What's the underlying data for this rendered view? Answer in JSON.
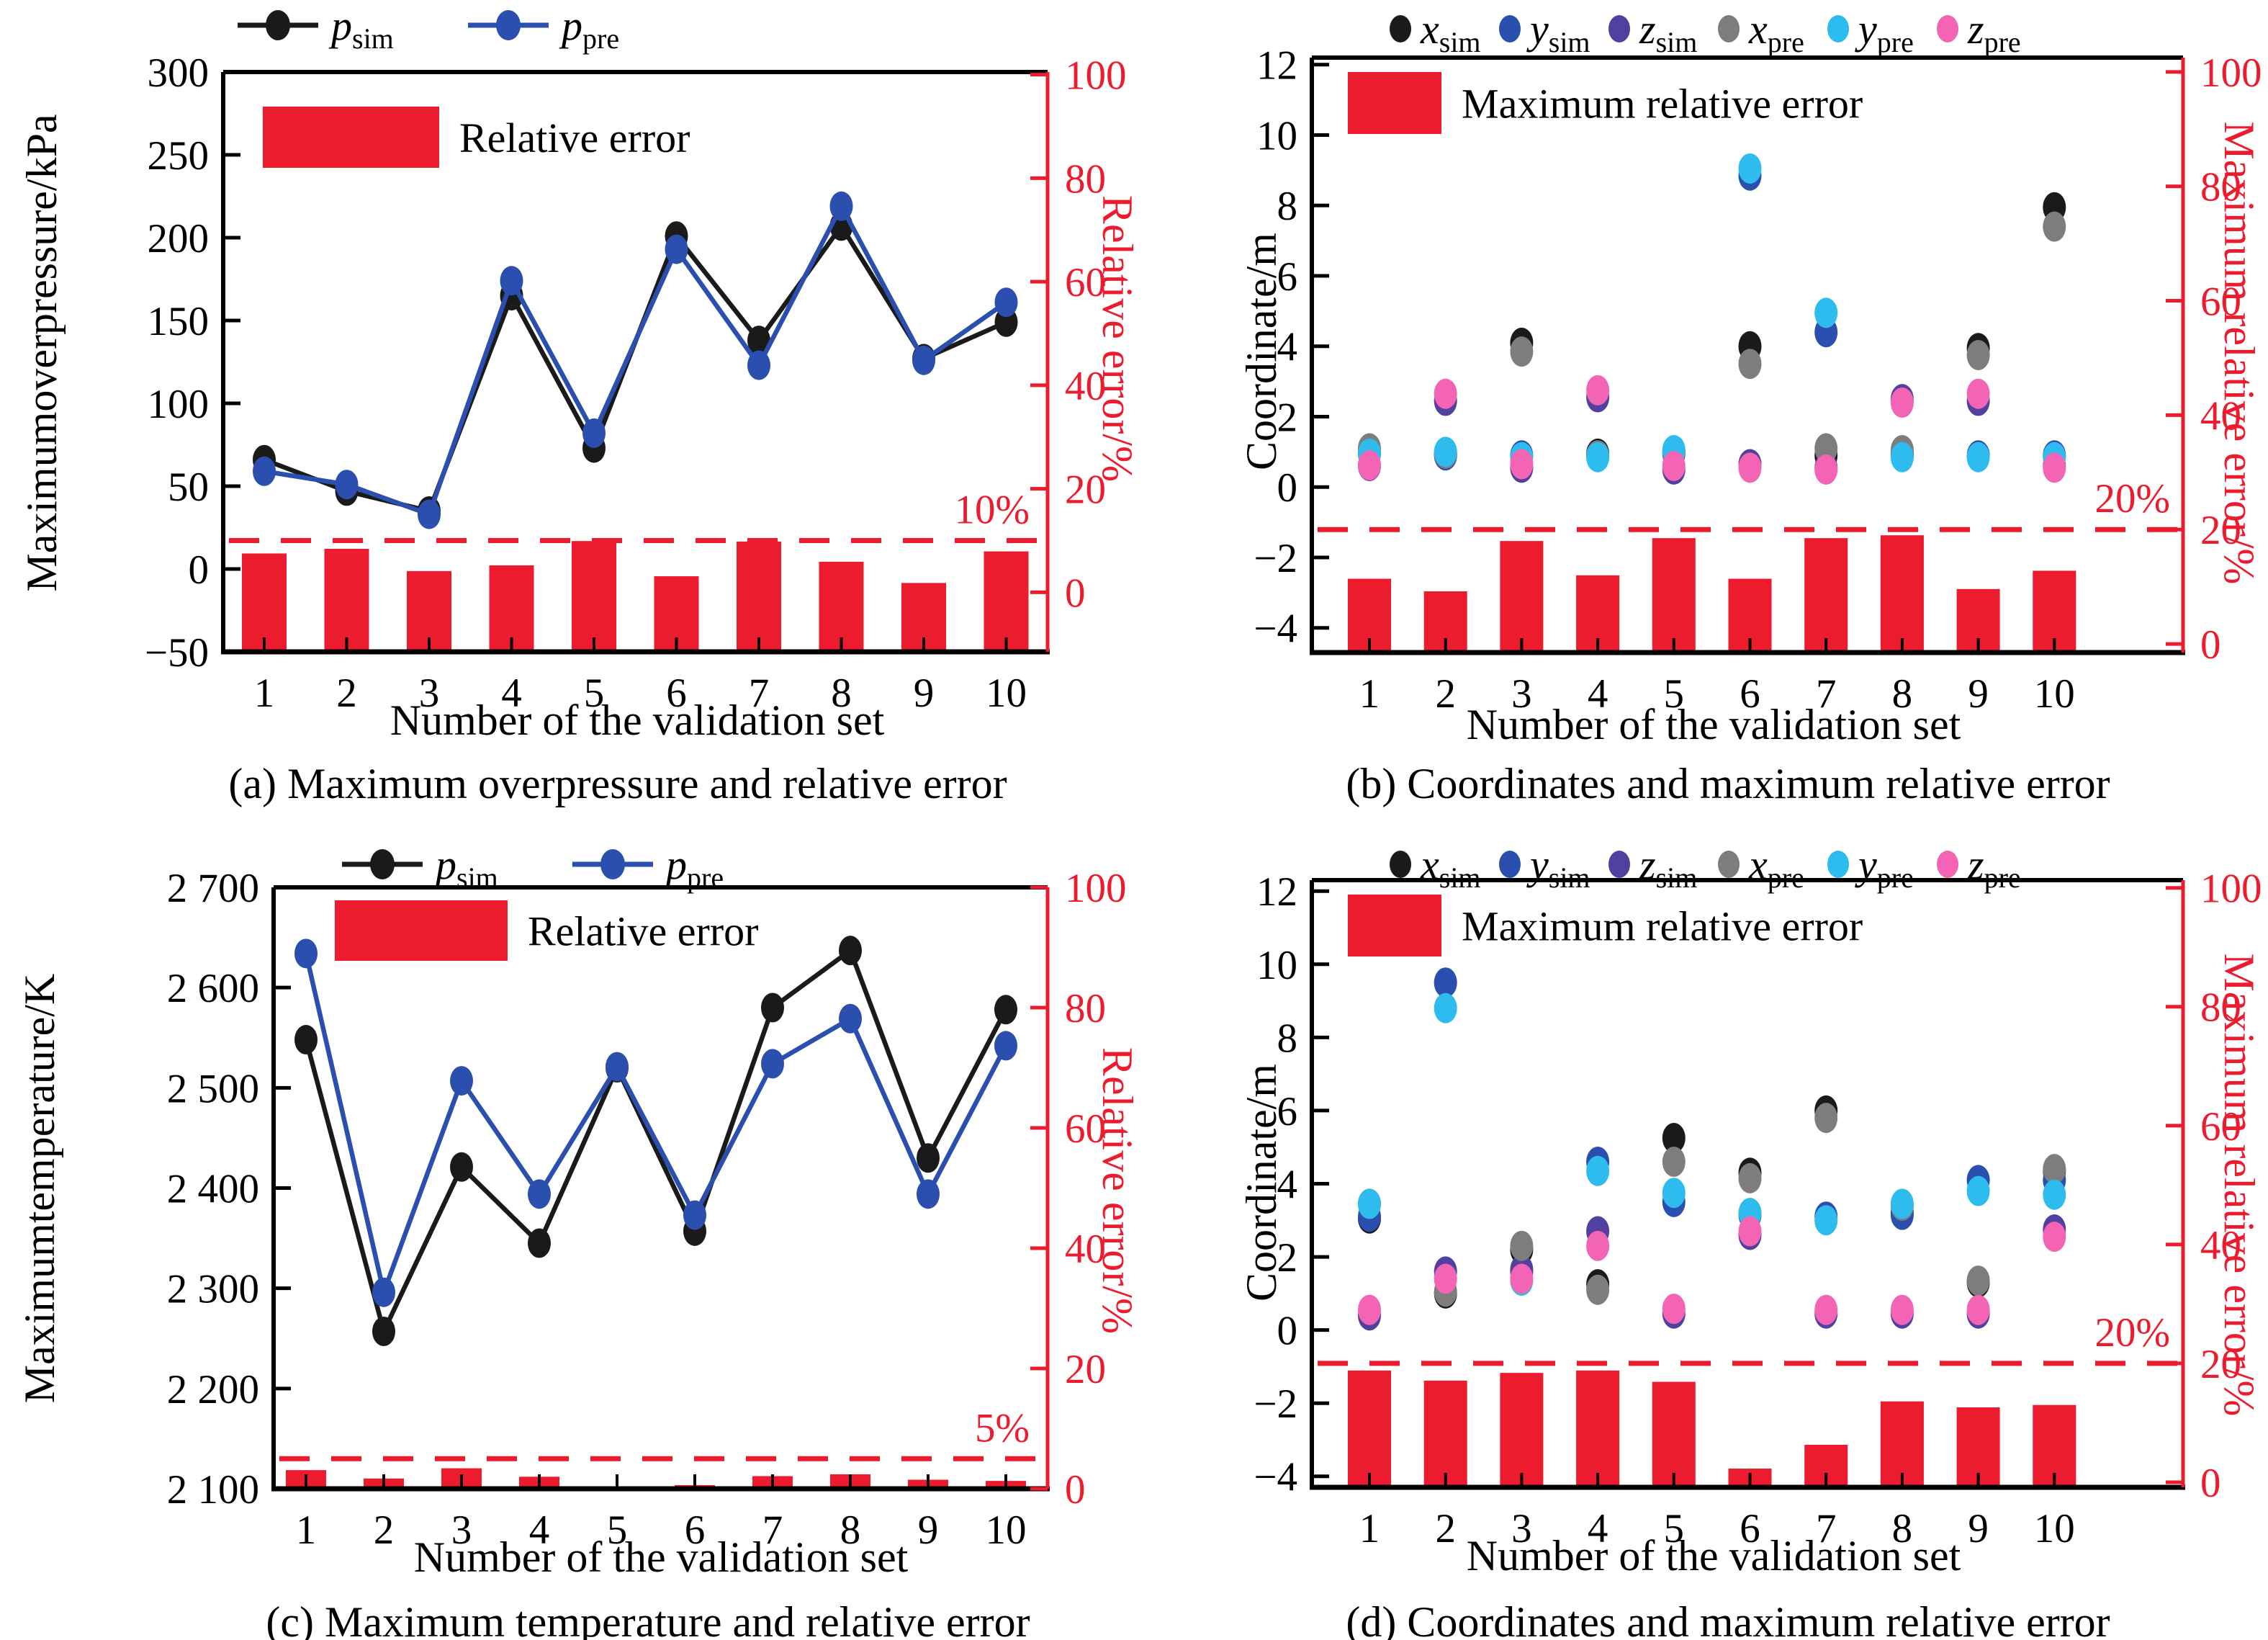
{
  "colors": {
    "black": "#1a1a1a",
    "blue": "#2a4fae",
    "purple": "#5240a0",
    "gray": "#7d7d7d",
    "cyan": "#2ebcee",
    "pink": "#f464b4",
    "red": "#ec1b2e"
  },
  "chart_data": [
    {
      "id": "a",
      "type": "line+bar",
      "caption": "(a) Maximum overpressure and relative error",
      "xlabel": "Number of the validation set",
      "ylabel_left": "Maximumoverpressure/kPa",
      "ylabel_right": "Relative error/%",
      "categories": [
        "1",
        "2",
        "3",
        "4",
        "5",
        "6",
        "7",
        "8",
        "9",
        "10"
      ],
      "left_axis": {
        "tick_values": [
          300,
          250,
          200,
          150,
          100,
          50,
          0,
          -50
        ],
        "tick_labels": [
          "300",
          "250",
          "200",
          "150",
          "100",
          "50",
          "0",
          "−50"
        ],
        "lim": [
          -50,
          300
        ]
      },
      "right_axis": {
        "tick_values": [
          100,
          80,
          60,
          40,
          20,
          0
        ],
        "tick_labels": [
          "100",
          "80",
          "60",
          "40",
          "20",
          "0"
        ],
        "lim": [
          -11.5,
          100.5
        ]
      },
      "threshold": {
        "value": 10,
        "label": "10%"
      },
      "line_series": [
        {
          "name": "p",
          "sub": "sim",
          "color_key": "black",
          "values": [
            66,
            47,
            35,
            165,
            73,
            201,
            138,
            207,
            127,
            149
          ]
        },
        {
          "name": "p",
          "sub": "pre",
          "color_key": "blue",
          "values": [
            59,
            51,
            33,
            174,
            82,
            193,
            123,
            219,
            126,
            161
          ]
        }
      ],
      "bar_series": {
        "label": "Relative error",
        "color_key": "red",
        "values": [
          7.5,
          8.4,
          4.1,
          5.2,
          9.9,
          3.1,
          9.8,
          5.9,
          1.8,
          7.9
        ]
      }
    },
    {
      "id": "b",
      "type": "scatter+bar",
      "caption": "(b) Coordinates and maximum relative error",
      "xlabel": "Number of the validation set",
      "ylabel_left": "Coordinate/m",
      "ylabel_right": "Maximum relative error/%",
      "categories": [
        "1",
        "2",
        "3",
        "4",
        "5",
        "6",
        "7",
        "8",
        "9",
        "10"
      ],
      "left_axis": {
        "tick_values": [
          12,
          10,
          8,
          6,
          4,
          2,
          0,
          -2,
          -4
        ],
        "tick_labels": [
          "12",
          "10",
          "8",
          "6",
          "4",
          "2",
          "0",
          "−2",
          "−4"
        ],
        "lim": [
          -4.7,
          12.2
        ]
      },
      "right_axis": {
        "tick_values": [
          100,
          80,
          60,
          40,
          20,
          0
        ],
        "tick_labels": [
          "100",
          "80",
          "60",
          "40",
          "20",
          "0"
        ],
        "lim": [
          -1.5,
          102.5
        ]
      },
      "threshold": {
        "value": 20,
        "label": "20%"
      },
      "scatter_series": [
        {
          "name": "x",
          "sub": "sim",
          "color_key": "black",
          "values": [
            1.0,
            0.95,
            4.1,
            0.95,
            1.0,
            4.0,
            0.9,
            0.95,
            3.95,
            7.95
          ]
        },
        {
          "name": "y",
          "sub": "sim",
          "color_key": "blue",
          "values": [
            0.95,
            0.9,
            0.9,
            0.9,
            0.95,
            8.85,
            4.4,
            0.9,
            0.9,
            0.9
          ]
        },
        {
          "name": "z",
          "sub": "sim",
          "color_key": "purple",
          "values": [
            0.6,
            2.45,
            0.55,
            2.55,
            0.5,
            0.65,
            0.55,
            2.5,
            2.45,
            0.6
          ]
        },
        {
          "name": "x",
          "sub": "pre",
          "color_key": "gray",
          "values": [
            1.1,
            0.95,
            3.85,
            0.9,
            1.0,
            3.5,
            1.1,
            1.05,
            3.75,
            7.4
          ]
        },
        {
          "name": "y",
          "sub": "pre",
          "color_key": "cyan",
          "values": [
            0.95,
            1.0,
            0.85,
            0.85,
            1.05,
            9.05,
            4.95,
            0.85,
            0.85,
            0.85
          ]
        },
        {
          "name": "z",
          "sub": "pre",
          "color_key": "pink",
          "values": [
            0.62,
            2.65,
            0.65,
            2.75,
            0.6,
            0.55,
            0.5,
            2.4,
            2.65,
            0.55
          ]
        }
      ],
      "bar_series": {
        "label": "Maximum relative error",
        "color_key": "red",
        "values": [
          11.4,
          9.2,
          18.0,
          12.0,
          18.5,
          11.4,
          18.5,
          19.0,
          9.6,
          12.8
        ]
      }
    },
    {
      "id": "c",
      "type": "line+bar",
      "caption": "(c) Maximum temperature and relative error",
      "xlabel": "Number of the validation set",
      "ylabel_left": "Maximumtemperature/K",
      "ylabel_right": "Relative error/%",
      "categories": [
        "1",
        "2",
        "3",
        "4",
        "5",
        "6",
        "7",
        "8",
        "9",
        "10"
      ],
      "left_axis": {
        "tick_values": [
          2700,
          2600,
          2500,
          2400,
          2300,
          2200,
          2100
        ],
        "tick_labels": [
          "2 700",
          "2 600",
          "2 500",
          "2 400",
          "2 300",
          "2 200",
          "2 100"
        ],
        "lim": [
          2100,
          2700
        ]
      },
      "right_axis": {
        "tick_values": [
          100,
          80,
          60,
          40,
          20,
          0
        ],
        "tick_labels": [
          "100",
          "80",
          "60",
          "40",
          "20",
          "0"
        ],
        "lim": [
          0,
          100
        ]
      },
      "threshold": {
        "value": 5,
        "label": "5%"
      },
      "line_series": [
        {
          "name": "p",
          "sub": "sim",
          "color_key": "black",
          "values": [
            2548,
            2257,
            2421,
            2345,
            2520,
            2357,
            2580,
            2637,
            2430,
            2578
          ]
        },
        {
          "name": "p",
          "sub": "pre",
          "color_key": "blue",
          "values": [
            2634,
            2296,
            2507,
            2394,
            2521,
            2373,
            2524,
            2569,
            2394,
            2542
          ]
        }
      ],
      "bar_series": {
        "label": "Relative error",
        "color_key": "red",
        "values": [
          3.1,
          1.7,
          3.4,
          2.0,
          0.4,
          0.6,
          2.1,
          2.4,
          1.5,
          1.3
        ]
      }
    },
    {
      "id": "d",
      "type": "scatter+bar",
      "caption": "(d) Coordinates and maximum relative error",
      "xlabel": "Number of the validation set",
      "ylabel_left": "Coordinate/m",
      "ylabel_right": "Maximum relative error/%",
      "categories": [
        "1",
        "2",
        "3",
        "4",
        "5",
        "6",
        "7",
        "8",
        "9",
        "10"
      ],
      "left_axis": {
        "tick_values": [
          12,
          10,
          8,
          6,
          4,
          2,
          0,
          -2,
          -4
        ],
        "tick_labels": [
          "12",
          "10",
          "8",
          "6",
          "4",
          "2",
          "0",
          "−2",
          "−4"
        ],
        "lim": [
          -4.3,
          12.3
        ]
      },
      "right_axis": {
        "tick_values": [
          100,
          80,
          60,
          40,
          20,
          0
        ],
        "tick_labels": [
          "100",
          "80",
          "60",
          "40",
          "20",
          "0"
        ],
        "lim": [
          -0.85,
          101.3
        ]
      },
      "threshold": {
        "value": 20,
        "label": "20%"
      },
      "scatter_series": [
        {
          "name": "x",
          "sub": "sim",
          "color_key": "black",
          "values": [
            3.05,
            1.0,
            2.2,
            1.25,
            5.25,
            4.3,
            6.0,
            3.2,
            1.3,
            4.35
          ]
        },
        {
          "name": "y",
          "sub": "sim",
          "color_key": "blue",
          "values": [
            3.1,
            9.5,
            1.6,
            4.6,
            3.5,
            3.15,
            3.1,
            3.15,
            4.1,
            4.1
          ]
        },
        {
          "name": "z",
          "sub": "sim",
          "color_key": "purple",
          "values": [
            0.4,
            1.6,
            1.65,
            2.7,
            0.45,
            2.6,
            0.45,
            0.45,
            0.45,
            2.75
          ]
        },
        {
          "name": "x",
          "sub": "pre",
          "color_key": "gray",
          "values": [
            3.45,
            1.05,
            2.3,
            1.1,
            4.6,
            4.15,
            5.8,
            3.4,
            1.35,
            4.4
          ]
        },
        {
          "name": "y",
          "sub": "pre",
          "color_key": "cyan",
          "values": [
            3.45,
            8.8,
            1.35,
            4.35,
            3.75,
            3.2,
            3.0,
            3.45,
            3.8,
            3.7
          ]
        },
        {
          "name": "z",
          "sub": "pre",
          "color_key": "pink",
          "values": [
            0.55,
            1.4,
            1.4,
            2.3,
            0.58,
            2.7,
            0.55,
            0.55,
            0.55,
            2.55
          ]
        }
      ],
      "bar_series": {
        "label": "Maximum relative error",
        "color_key": "red",
        "values": [
          18.8,
          17.1,
          18.4,
          18.8,
          16.9,
          2.3,
          6.3,
          13.6,
          12.6,
          13.0
        ]
      }
    }
  ]
}
